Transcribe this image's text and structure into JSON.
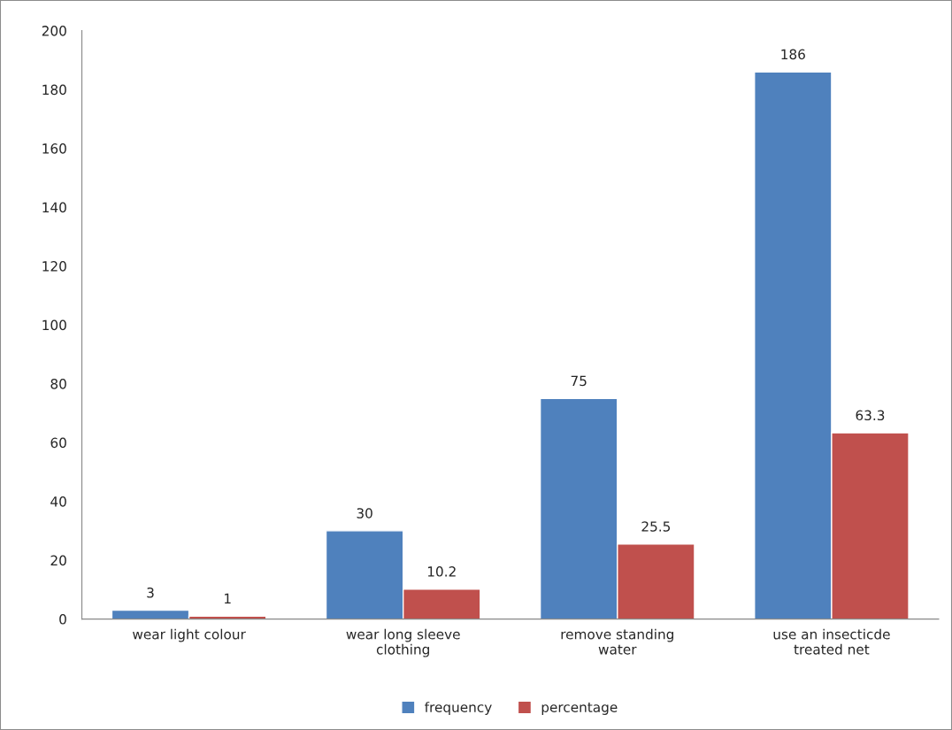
{
  "chart_data": {
    "type": "bar",
    "categories": [
      "wear light colour",
      "wear long sleeve\nclothing",
      "remove standing\nwater",
      "use an insecticde\ntreated net"
    ],
    "series": [
      {
        "name": "frequency",
        "color": "#4f81bd",
        "values": [
          3,
          30,
          75,
          186
        ]
      },
      {
        "name": "percentage",
        "color": "#c0504d",
        "values": [
          1,
          10.2,
          25.5,
          63.3
        ]
      }
    ],
    "ylim": [
      0,
      200
    ],
    "yticks": [
      0,
      20,
      40,
      60,
      80,
      100,
      120,
      140,
      160,
      180,
      200
    ],
    "data_labels": true,
    "grid": false,
    "legend": "bottom"
  }
}
